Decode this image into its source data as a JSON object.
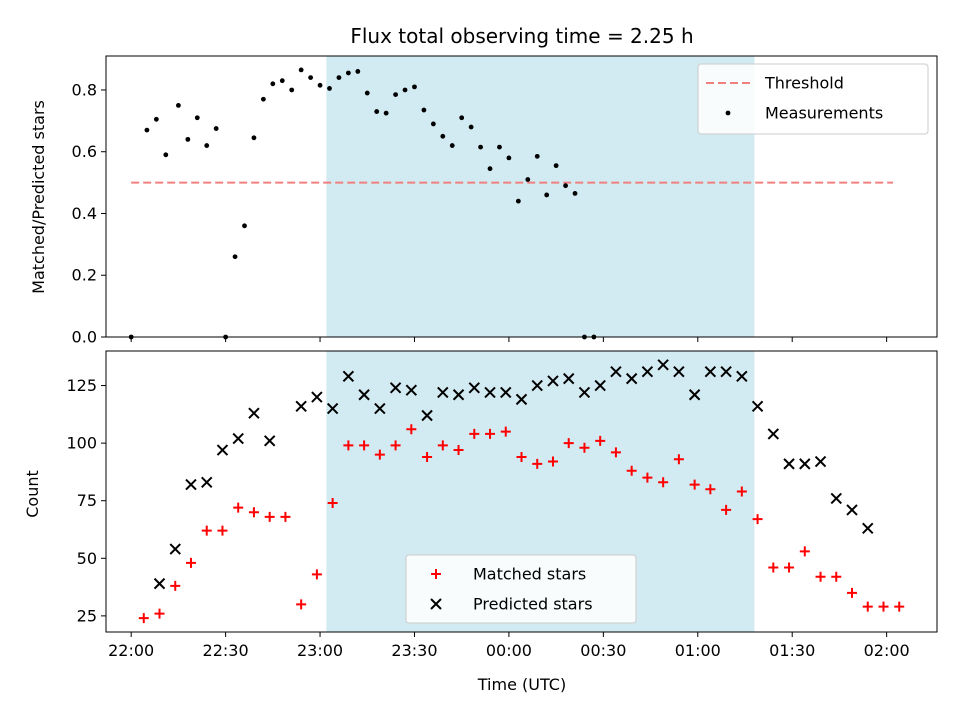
{
  "chart_data": [
    {
      "type": "scatter",
      "title": "Flux total observing time = 2.25 h",
      "xlabel": "",
      "ylabel": "Matched/Predicted stars",
      "xlim": [
        "21:52",
        "02:16"
      ],
      "ylim": [
        0,
        0.91
      ],
      "yticks": [
        "0.0",
        "0.2",
        "0.4",
        "0.6",
        "0.8"
      ],
      "shaded_interval": [
        "23:02",
        "01:18"
      ],
      "shade_color": "#add8e6",
      "threshold": {
        "name": "Threshold",
        "value": 0.5,
        "x": [
          "22:00",
          "02:02"
        ],
        "color": "#f08080"
      },
      "legend": {
        "placement": "upper right",
        "entries": [
          "Threshold",
          "Measurements"
        ]
      },
      "series": [
        {
          "name": "Measurements",
          "color": "#000000",
          "marker": "dot",
          "points": [
            [
              "22:00",
              0.0
            ],
            [
              "22:05",
              0.67
            ],
            [
              "22:08",
              0.705
            ],
            [
              "22:11",
              0.59
            ],
            [
              "22:15",
              0.75
            ],
            [
              "22:18",
              0.64
            ],
            [
              "22:21",
              0.71
            ],
            [
              "22:24",
              0.62
            ],
            [
              "22:27",
              0.675
            ],
            [
              "22:30",
              0.0
            ],
            [
              "22:33",
              0.26
            ],
            [
              "22:36",
              0.36
            ],
            [
              "22:39",
              0.645
            ],
            [
              "22:42",
              0.77
            ],
            [
              "22:45",
              0.82
            ],
            [
              "22:48",
              0.83
            ],
            [
              "22:51",
              0.8
            ],
            [
              "22:54",
              0.865
            ],
            [
              "22:57",
              0.84
            ],
            [
              "23:00",
              0.815
            ],
            [
              "23:03",
              0.805
            ],
            [
              "23:06",
              0.84
            ],
            [
              "23:09",
              0.855
            ],
            [
              "23:12",
              0.86
            ],
            [
              "23:15",
              0.79
            ],
            [
              "23:18",
              0.73
            ],
            [
              "23:21",
              0.725
            ],
            [
              "23:24",
              0.785
            ],
            [
              "23:27",
              0.8
            ],
            [
              "23:30",
              0.81
            ],
            [
              "23:33",
              0.735
            ],
            [
              "23:36",
              0.69
            ],
            [
              "23:39",
              0.65
            ],
            [
              "23:42",
              0.62
            ],
            [
              "23:45",
              0.71
            ],
            [
              "23:48",
              0.68
            ],
            [
              "23:51",
              0.615
            ],
            [
              "23:54",
              0.545
            ],
            [
              "23:57",
              0.615
            ],
            [
              "00:00",
              0.58
            ],
            [
              "00:03",
              0.44
            ],
            [
              "00:06",
              0.51
            ],
            [
              "00:09",
              0.585
            ],
            [
              "00:12",
              0.46
            ],
            [
              "00:15",
              0.555
            ],
            [
              "00:18",
              0.49
            ],
            [
              "00:21",
              0.465
            ],
            [
              "00:24",
              0.0
            ],
            [
              "00:27",
              0.0
            ]
          ]
        }
      ]
    },
    {
      "type": "scatter",
      "title": "",
      "xlabel": "Time (UTC)",
      "ylabel": "Count",
      "xlim": [
        "21:52",
        "02:16"
      ],
      "ylim": [
        18,
        140
      ],
      "xticks": [
        "22:00",
        "22:30",
        "23:00",
        "23:30",
        "00:00",
        "00:30",
        "01:00",
        "01:30",
        "02:00"
      ],
      "yticks": [
        "25",
        "50",
        "75",
        "100",
        "125"
      ],
      "shaded_interval": [
        "23:02",
        "01:18"
      ],
      "shade_color": "#add8e6",
      "legend": {
        "placement": "lower center",
        "entries": [
          "Matched stars",
          "Predicted stars"
        ]
      },
      "series": [
        {
          "name": "Matched stars",
          "color": "#ff0000",
          "marker": "plus",
          "points": [
            [
              "22:04",
              24
            ],
            [
              "22:09",
              26
            ],
            [
              "22:14",
              38
            ],
            [
              "22:19",
              48
            ],
            [
              "22:24",
              62
            ],
            [
              "22:29",
              62
            ],
            [
              "22:34",
              72
            ],
            [
              "22:39",
              70
            ],
            [
              "22:44",
              68
            ],
            [
              "22:49",
              68
            ],
            [
              "22:54",
              30
            ],
            [
              "22:59",
              43
            ],
            [
              "23:04",
              74
            ],
            [
              "23:09",
              99
            ],
            [
              "23:14",
              99
            ],
            [
              "23:19",
              95
            ],
            [
              "23:24",
              99
            ],
            [
              "23:29",
              106
            ],
            [
              "23:34",
              94
            ],
            [
              "23:39",
              99
            ],
            [
              "23:44",
              97
            ],
            [
              "23:49",
              104
            ],
            [
              "23:54",
              104
            ],
            [
              "23:59",
              105
            ],
            [
              "00:04",
              94
            ],
            [
              "00:09",
              91
            ],
            [
              "00:14",
              92
            ],
            [
              "00:19",
              100
            ],
            [
              "00:24",
              98
            ],
            [
              "00:29",
              101
            ],
            [
              "00:34",
              96
            ],
            [
              "00:39",
              88
            ],
            [
              "00:44",
              85
            ],
            [
              "00:49",
              83
            ],
            [
              "00:54",
              93
            ],
            [
              "00:59",
              82
            ],
            [
              "01:04",
              80
            ],
            [
              "01:09",
              71
            ],
            [
              "01:14",
              79
            ],
            [
              "01:19",
              67
            ],
            [
              "01:24",
              46
            ],
            [
              "01:29",
              46
            ],
            [
              "01:34",
              53
            ],
            [
              "01:39",
              42
            ],
            [
              "01:44",
              42
            ],
            [
              "01:49",
              35
            ],
            [
              "01:54",
              29
            ],
            [
              "01:59",
              29
            ],
            [
              "02:04",
              29
            ]
          ]
        },
        {
          "name": "Predicted stars",
          "color": "#000000",
          "marker": "x",
          "points": [
            [
              "22:09",
              39
            ],
            [
              "22:14",
              54
            ],
            [
              "22:19",
              82
            ],
            [
              "22:24",
              83
            ],
            [
              "22:29",
              97
            ],
            [
              "22:34",
              102
            ],
            [
              "22:39",
              113
            ],
            [
              "22:44",
              101
            ],
            [
              "22:54",
              116
            ],
            [
              "22:59",
              120
            ],
            [
              "23:04",
              115
            ],
            [
              "23:09",
              129
            ],
            [
              "23:14",
              121
            ],
            [
              "23:19",
              115
            ],
            [
              "23:24",
              124
            ],
            [
              "23:29",
              123
            ],
            [
              "23:34",
              112
            ],
            [
              "23:39",
              122
            ],
            [
              "23:44",
              121
            ],
            [
              "23:49",
              124
            ],
            [
              "23:54",
              122
            ],
            [
              "23:59",
              122
            ],
            [
              "00:04",
              119
            ],
            [
              "00:09",
              125
            ],
            [
              "00:14",
              127
            ],
            [
              "00:19",
              128
            ],
            [
              "00:24",
              122
            ],
            [
              "00:29",
              125
            ],
            [
              "00:34",
              131
            ],
            [
              "00:39",
              128
            ],
            [
              "00:44",
              131
            ],
            [
              "00:49",
              134
            ],
            [
              "00:54",
              131
            ],
            [
              "00:59",
              121
            ],
            [
              "01:04",
              131
            ],
            [
              "01:09",
              131
            ],
            [
              "01:14",
              129
            ],
            [
              "01:19",
              116
            ],
            [
              "01:24",
              104
            ],
            [
              "01:29",
              91
            ],
            [
              "01:34",
              91
            ],
            [
              "01:39",
              92
            ],
            [
              "01:44",
              76
            ],
            [
              "01:49",
              71
            ],
            [
              "01:54",
              63
            ]
          ]
        }
      ]
    }
  ]
}
